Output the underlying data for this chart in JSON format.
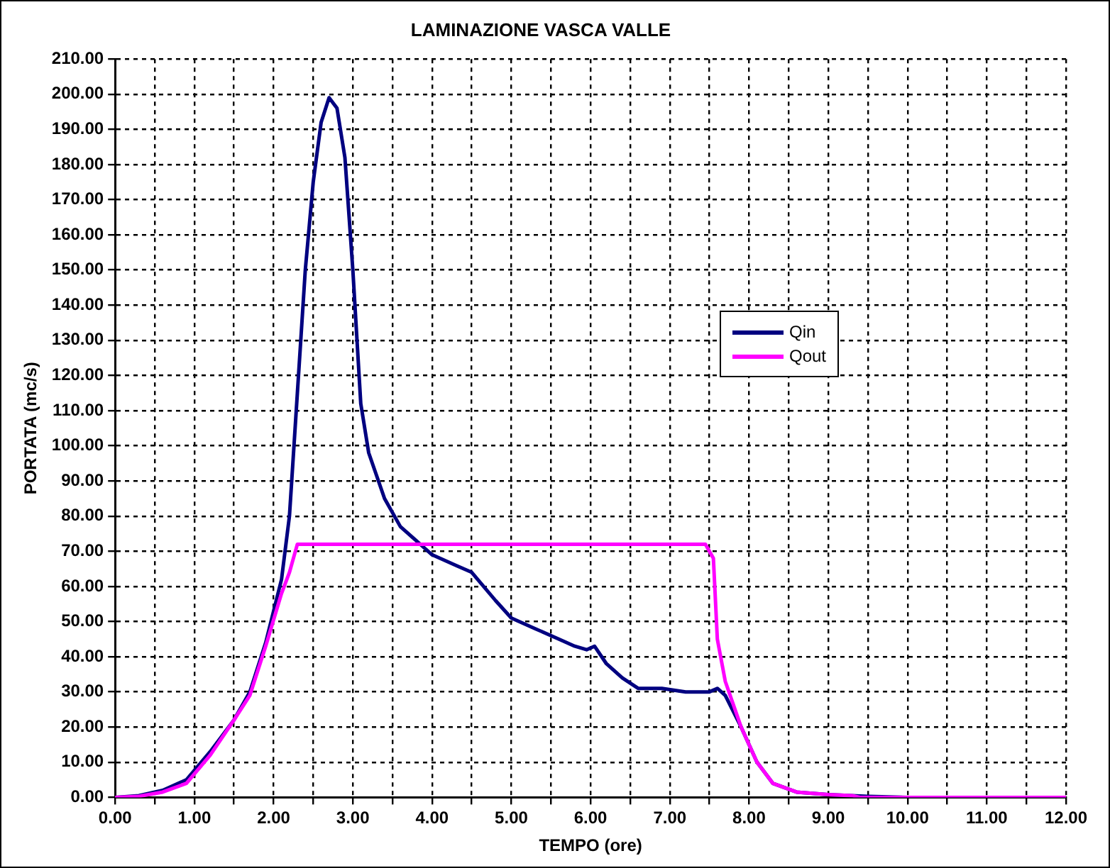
{
  "chart_data": {
    "type": "line",
    "title": "LAMINAZIONE VASCA VALLE",
    "xlabel": "TEMPO (ore)",
    "ylabel": "PORTATA (mc/s)",
    "series": [
      {
        "name": "Qin",
        "color": "#000080",
        "x": [
          0,
          0.3,
          0.6,
          0.9,
          1.2,
          1.5,
          1.7,
          1.9,
          2.1,
          2.2,
          2.3,
          2.4,
          2.5,
          2.6,
          2.7,
          2.8,
          2.9,
          3.0,
          3.1,
          3.2,
          3.4,
          3.6,
          3.8,
          4.0,
          4.3,
          4.5,
          4.8,
          5.0,
          5.3,
          5.6,
          5.8,
          5.95,
          6.05,
          6.2,
          6.4,
          6.6,
          6.9,
          7.2,
          7.5,
          7.6,
          7.7,
          7.9,
          8.1,
          8.3,
          8.6,
          9.0,
          9.5,
          10,
          12
        ],
        "values": [
          0,
          0.5,
          2,
          5,
          13,
          22,
          30,
          44,
          62,
          80,
          115,
          150,
          175,
          192,
          199,
          196,
          182,
          150,
          112,
          98,
          85,
          77,
          73,
          69,
          66,
          64,
          56,
          51,
          48,
          45,
          43,
          42,
          43,
          38,
          34,
          31,
          31,
          30,
          30,
          31,
          29,
          20,
          10,
          4,
          1.5,
          0.8,
          0.3,
          0,
          0
        ]
      },
      {
        "name": "Qout",
        "color": "#ff00ff",
        "x": [
          0,
          0.3,
          0.6,
          0.9,
          1.2,
          1.5,
          1.7,
          1.9,
          2.1,
          2.2,
          2.3,
          7.45,
          7.55,
          7.6,
          7.7,
          7.9,
          8.1,
          8.3,
          8.6,
          9.0,
          9.3,
          9.4,
          12
        ],
        "values": [
          0,
          0.3,
          1.5,
          4,
          12,
          22,
          29,
          43,
          58,
          64,
          72,
          72,
          68,
          45,
          33,
          20,
          10,
          4,
          1.5,
          0.8,
          0.5,
          0,
          0
        ]
      }
    ],
    "xlim": [
      0,
      12
    ],
    "xticks": [
      {
        "value": 0,
        "label": "0.00"
      },
      {
        "value": 0.5,
        "label": null
      },
      {
        "value": 1,
        "label": "1.00"
      },
      {
        "value": 1.5,
        "label": null
      },
      {
        "value": 2,
        "label": "2.00"
      },
      {
        "value": 2.5,
        "label": null
      },
      {
        "value": 3,
        "label": "3.00"
      },
      {
        "value": 3.5,
        "label": null
      },
      {
        "value": 4,
        "label": "4.00"
      },
      {
        "value": 4.5,
        "label": null
      },
      {
        "value": 5,
        "label": "5.00"
      },
      {
        "value": 5.5,
        "label": null
      },
      {
        "value": 6,
        "label": "6.00"
      },
      {
        "value": 6.5,
        "label": null
      },
      {
        "value": 7,
        "label": "7.00"
      },
      {
        "value": 7.5,
        "label": null
      },
      {
        "value": 8,
        "label": "8.00"
      },
      {
        "value": 8.5,
        "label": null
      },
      {
        "value": 9,
        "label": "9.00"
      },
      {
        "value": 9.5,
        "label": null
      },
      {
        "value": 10,
        "label": "10.00"
      },
      {
        "value": 10.5,
        "label": null
      },
      {
        "value": 11,
        "label": "11.00"
      },
      {
        "value": 11.5,
        "label": null
      },
      {
        "value": 12,
        "label": "12.00"
      }
    ],
    "ylim": [
      0,
      210
    ],
    "yticks": [
      {
        "value": 0,
        "label": "0.00"
      },
      {
        "value": 10,
        "label": "10.00"
      },
      {
        "value": 20,
        "label": "20.00"
      },
      {
        "value": 30,
        "label": "30.00"
      },
      {
        "value": 40,
        "label": "40.00"
      },
      {
        "value": 50,
        "label": "50.00"
      },
      {
        "value": 60,
        "label": "60.00"
      },
      {
        "value": 70,
        "label": "70.00"
      },
      {
        "value": 80,
        "label": "80.00"
      },
      {
        "value": 90,
        "label": "90.00"
      },
      {
        "value": 100,
        "label": "100.00"
      },
      {
        "value": 110,
        "label": "110.00"
      },
      {
        "value": 120,
        "label": "120.00"
      },
      {
        "value": 130,
        "label": "130.00"
      },
      {
        "value": 140,
        "label": "140.00"
      },
      {
        "value": 150,
        "label": "150.00"
      },
      {
        "value": 160,
        "label": "160.00"
      },
      {
        "value": 170,
        "label": "170.00"
      },
      {
        "value": 180,
        "label": "180.00"
      },
      {
        "value": 190,
        "label": "190.00"
      },
      {
        "value": 200,
        "label": "200.00"
      },
      {
        "value": 210,
        "label": "210.00"
      }
    ],
    "grid": true,
    "legend": "right",
    "marker": "none",
    "line_style": "solid"
  }
}
